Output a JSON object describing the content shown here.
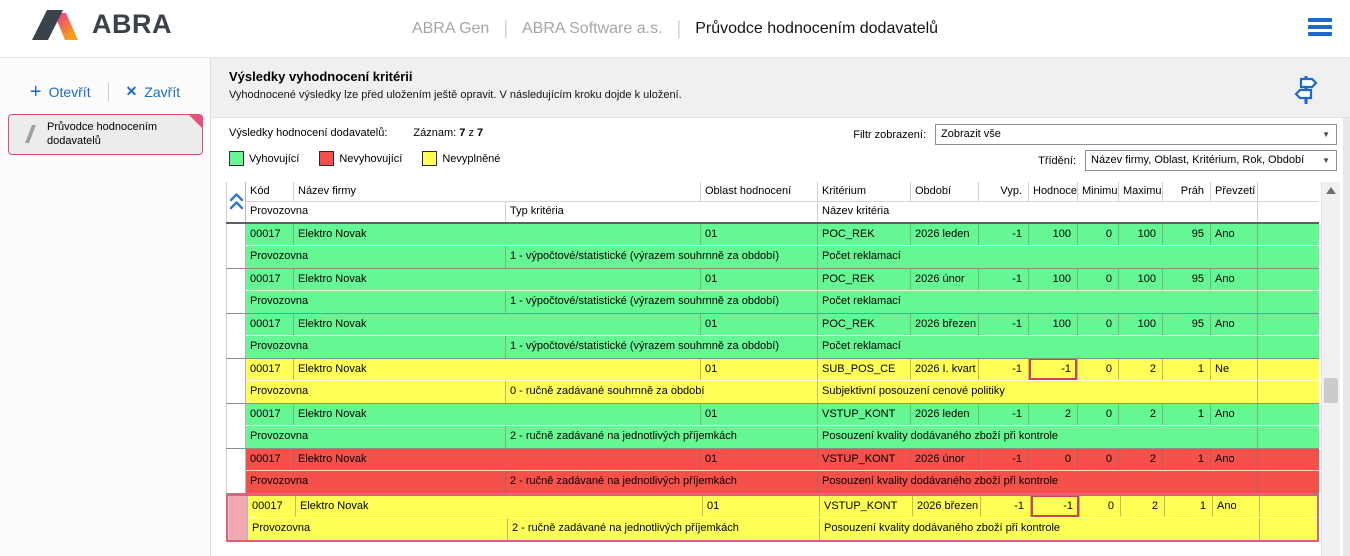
{
  "header": {
    "logo_text": "ABRA",
    "app_name": "ABRA Gen",
    "company": "ABRA Software a.s.",
    "page_title": "Průvodce hodnocením dodavatelů",
    "separator": "|"
  },
  "sidebar": {
    "open_label": "Otevřít",
    "close_label": "Zavřít",
    "card_title": "Průvodce hodnocením dodavatelů"
  },
  "panel": {
    "title": "Výsledky vyhodnocení kritérii",
    "subtitle": "Vyhodnocené výsledky lze před uložením ještě opravit. V následujícím kroku dojde k uložení.",
    "records_label": "Výsledky hodnocení dodavatelů:",
    "counter_label": "Záznam:",
    "counter_current": "7",
    "counter_sep": "z",
    "counter_total": "7",
    "legend": [
      {
        "label": "Vyhovující",
        "color": "#66f795"
      },
      {
        "label": "Nevyhovující",
        "color": "#f5504a"
      },
      {
        "label": "Nevyplněné",
        "color": "#ffff55"
      }
    ],
    "filter_label": "Filtr zobrazení:",
    "filter_value": "Zobrazit vše",
    "sort_label": "Třídění:",
    "sort_value": "Název firmy, Oblast, Kritérium, Rok, Období"
  },
  "table": {
    "columns": {
      "kod": "Kód firmy",
      "nazev": "Název firmy",
      "oblast": "Oblast hodnocení",
      "kriterium": "Kritérium",
      "obdobi": "Období",
      "vyp": "Vyp. hod.",
      "hodnoceni": "Hodnocení",
      "minimum": "Minimum",
      "maximum": "Maximum",
      "prah": "Práh",
      "prevzeti": "Převzetí",
      "provozovna": "Provozovna",
      "typ": "Typ kritéria",
      "nazev_kriteria": "Název kritéria"
    },
    "colors": {
      "ok": "#66f795",
      "fail": "#f5504a",
      "empty": "#ffff55",
      "selected_border": "#e0607a",
      "selected_marker": "#f2a7b3",
      "flag_border": "#cf4456",
      "accent_blue": "#1b6ac9",
      "card_border": "#d95069"
    },
    "rows": [
      {
        "kod": "00017",
        "nazev": "Elektro Novak",
        "oblast": "01",
        "kriterium": "POC_REK",
        "obdobi": "2026 leden",
        "vyp": "-1",
        "hodnoceni": "100",
        "minimum": "0",
        "maximum": "100",
        "prah": "95",
        "prevzeti": "Ano",
        "provozovna": "Provozovna",
        "typ": "1 - výpočtové/statistické (výrazem souhrnně za období)",
        "nazev_kriteria": "Počet reklamací",
        "status": "ok",
        "flagged": false,
        "selected": false
      },
      {
        "kod": "00017",
        "nazev": "Elektro Novak",
        "oblast": "01",
        "kriterium": "POC_REK",
        "obdobi": "2026 únor",
        "vyp": "-1",
        "hodnoceni": "100",
        "minimum": "0",
        "maximum": "100",
        "prah": "95",
        "prevzeti": "Ano",
        "provozovna": "Provozovna",
        "typ": "1 - výpočtové/statistické (výrazem souhrnně za období)",
        "nazev_kriteria": "Počet reklamací",
        "status": "ok",
        "flagged": false,
        "selected": false
      },
      {
        "kod": "00017",
        "nazev": "Elektro Novak",
        "oblast": "01",
        "kriterium": "POC_REK",
        "obdobi": "2026 březen",
        "vyp": "-1",
        "hodnoceni": "100",
        "minimum": "0",
        "maximum": "100",
        "prah": "95",
        "prevzeti": "Ano",
        "provozovna": "Provozovna",
        "typ": "1 - výpočtové/statistické (výrazem souhrnně za období)",
        "nazev_kriteria": "Počet reklamací",
        "status": "ok",
        "flagged": false,
        "selected": false
      },
      {
        "kod": "00017",
        "nazev": "Elektro Novak",
        "oblast": "01",
        "kriterium": "SUB_POS_CE",
        "obdobi": "2026 I. kvart",
        "vyp": "-1",
        "hodnoceni": "-1",
        "minimum": "0",
        "maximum": "2",
        "prah": "1",
        "prevzeti": "Ne",
        "provozovna": "Provozovna",
        "typ": "0 - ručně zadávané souhrnně za období",
        "nazev_kriteria": "Subjektivní posouzení cenové politiky",
        "status": "empty",
        "flagged": true,
        "selected": false
      },
      {
        "kod": "00017",
        "nazev": "Elektro Novak",
        "oblast": "01",
        "kriterium": "VSTUP_KONT",
        "obdobi": "2026 leden",
        "vyp": "-1",
        "hodnoceni": "2",
        "minimum": "0",
        "maximum": "2",
        "prah": "1",
        "prevzeti": "Ano",
        "provozovna": "Provozovna",
        "typ": "2 - ručně zadávané na jednotlivých příjemkách",
        "nazev_kriteria": "Posouzení kvality dodávaného zboží při kontrole",
        "status": "ok",
        "flagged": false,
        "selected": false
      },
      {
        "kod": "00017",
        "nazev": "Elektro Novak",
        "oblast": "01",
        "kriterium": "VSTUP_KONT",
        "obdobi": "2026 únor",
        "vyp": "-1",
        "hodnoceni": "0",
        "minimum": "0",
        "maximum": "2",
        "prah": "1",
        "prevzeti": "Ano",
        "provozovna": "Provozovna",
        "typ": "2 - ručně zadávané na jednotlivých příjemkách",
        "nazev_kriteria": "Posouzení kvality dodávaného zboží při kontrole",
        "status": "fail",
        "flagged": false,
        "selected": false
      },
      {
        "kod": "00017",
        "nazev": "Elektro Novak",
        "oblast": "01",
        "kriterium": "VSTUP_KONT",
        "obdobi": "2026 březen",
        "vyp": "-1",
        "hodnoceni": "-1",
        "minimum": "0",
        "maximum": "2",
        "prah": "1",
        "prevzeti": "Ano",
        "provozovna": "Provozovna",
        "typ": "2 - ručně zadávané na jednotlivých příjemkách",
        "nazev_kriteria": "Posouzení kvality dodávaného zboží při kontrole",
        "status": "empty",
        "flagged": true,
        "selected": true
      }
    ]
  }
}
